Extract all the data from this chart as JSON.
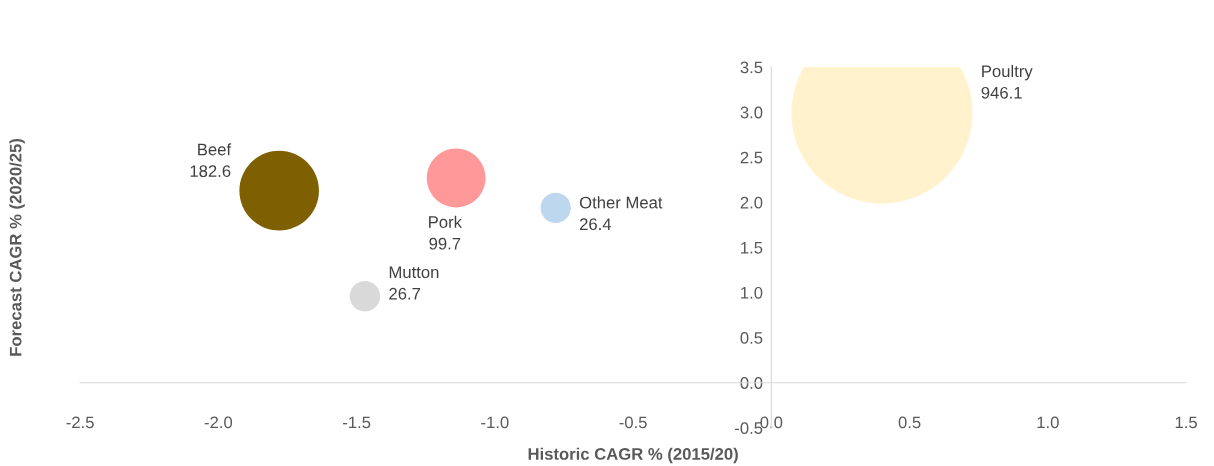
{
  "chart_data": {
    "type": "bubble",
    "xlabel": "Historic CAGR % (2015/20)",
    "ylabel": "Forecast CAGR % (2020/25)",
    "xlim": [
      -2.5,
      1.5
    ],
    "xticks": [
      {
        "value": -2.5,
        "label": "-2.5"
      },
      {
        "value": -2.0,
        "label": "-2.0"
      },
      {
        "value": -1.5,
        "label": "-1.5"
      },
      {
        "value": -1.0,
        "label": "-1.0"
      },
      {
        "value": -0.5,
        "label": "-0.5"
      },
      {
        "value": 0.0,
        "label": "0.0"
      },
      {
        "value": 0.5,
        "label": "0.5"
      },
      {
        "value": 1.0,
        "label": "1.0"
      },
      {
        "value": 1.5,
        "label": "1.5"
      }
    ],
    "ylim": [
      -0.5,
      3.5
    ],
    "yticks": [
      {
        "value": -0.5,
        "label": "-0.5"
      },
      {
        "value": 0.0,
        "label": "0.0"
      },
      {
        "value": 0.5,
        "label": "0.5"
      },
      {
        "value": 1.0,
        "label": "1.0"
      },
      {
        "value": 1.5,
        "label": "1.5"
      },
      {
        "value": 2.0,
        "label": "2.0"
      },
      {
        "value": 2.5,
        "label": "2.5"
      },
      {
        "value": 3.0,
        "label": "3.0"
      },
      {
        "value": 3.5,
        "label": "3.5"
      }
    ],
    "grid": false,
    "legend": false,
    "series": [
      {
        "name": "Beef",
        "color": "#7f6000",
        "x": [
          -1.78
        ],
        "values": [
          2.13
        ],
        "sizes": [
          182.6
        ],
        "value_labels": [
          "182.6"
        ]
      },
      {
        "name": "Pork",
        "color": "#ff9999",
        "x": [
          -1.14
        ],
        "values": [
          2.27
        ],
        "sizes": [
          99.7
        ],
        "value_labels": [
          "99.7"
        ]
      },
      {
        "name": "Other Meat",
        "color": "#bdd7ee",
        "x": [
          -0.78
        ],
        "values": [
          1.94
        ],
        "sizes": [
          26.4
        ],
        "value_labels": [
          "26.4"
        ]
      },
      {
        "name": "Mutton",
        "color": "#d9d9d9",
        "x": [
          -1.47
        ],
        "values": [
          0.96
        ],
        "sizes": [
          26.7
        ],
        "value_labels": [
          "26.7"
        ]
      },
      {
        "name": "Poultry",
        "color": "#fff2cc",
        "x": [
          0.4
        ],
        "values": [
          2.99
        ],
        "sizes": [
          946.1
        ],
        "value_labels": [
          "946.1"
        ]
      }
    ]
  }
}
